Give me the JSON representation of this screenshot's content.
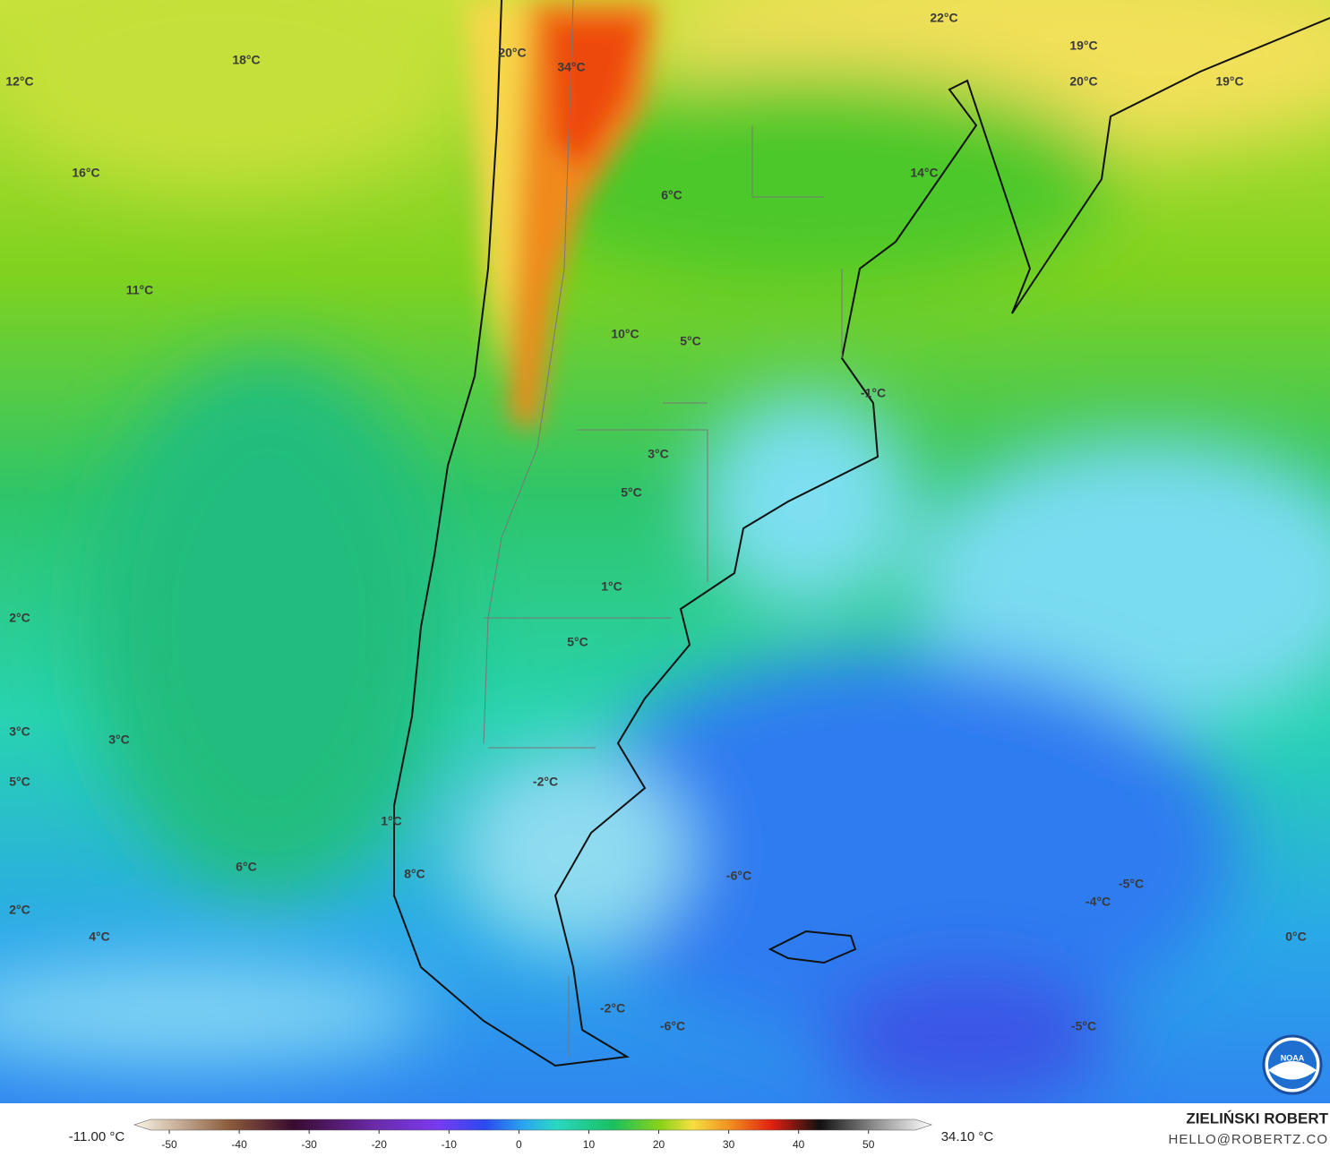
{
  "map": {
    "labels": [
      "18°C",
      "20°C",
      "34°C",
      "22°C",
      "19°C",
      "20°C",
      "19°C",
      "12°C",
      "16°C",
      "14°C",
      "6°C",
      "11°C",
      "10°C",
      "5°C",
      "-1°C",
      "3°C",
      "5°C",
      "1°C",
      "2°C",
      "5°C",
      "3°C",
      "3°C",
      "5°C",
      "-2°C",
      "1°C",
      "6°C",
      "8°C",
      "-6°C",
      "-5°C",
      "-4°C",
      "2°C",
      "4°C",
      "0°C",
      "-2°C",
      "-6°C",
      "-5°C"
    ]
  },
  "legend": {
    "min_label": "-11.00 °C",
    "max_label": "34.10 °C",
    "lim": [
      -55,
      59
    ],
    "ticks": [
      -50,
      -40,
      -30,
      -20,
      -10,
      0,
      10,
      20,
      30,
      40,
      50
    ]
  },
  "credit": {
    "name": "ZIELIŃSKI ROBERT",
    "email": "HELLO@ROBERTZ.CO"
  },
  "logo": "NOAA"
}
